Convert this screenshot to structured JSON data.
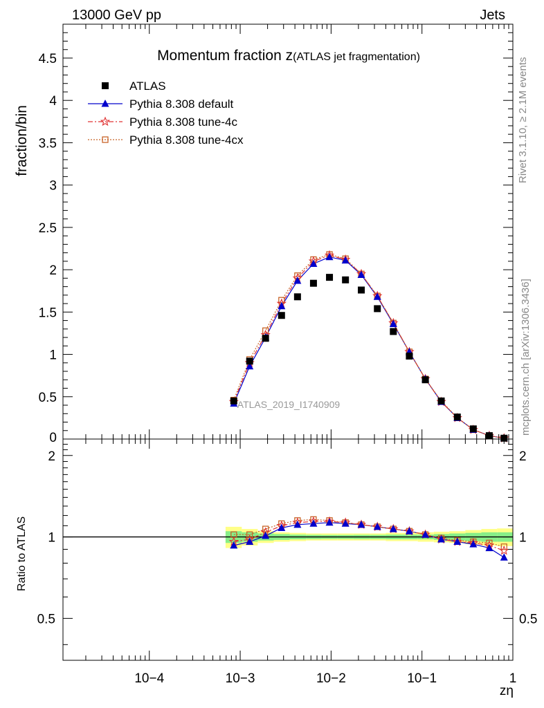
{
  "header": {
    "energy_label": "13000 GeV pp",
    "process_label": "Jets"
  },
  "side_labels": {
    "rivet": "Rivet 3.1.10, ≥ 2.1M events",
    "mcplots": "mcplots.cern.ch [arXiv:1306.3436]"
  },
  "chart_data": [
    {
      "type": "scatter",
      "title_main": "Momentum fraction z",
      "title_sub": "(ATLAS jet fragmentation)",
      "ylabel": "fraction/bin",
      "watermark": "ATLAS_2019_I1740909",
      "xscale": "log",
      "xlim": [
        0.0001,
        1
      ],
      "ylim": [
        0,
        4.9
      ],
      "yticks": [
        0.5,
        1,
        1.5,
        2,
        2.5,
        3,
        3.5,
        4,
        4.5
      ],
      "ytick_labels": [
        "0.5",
        "1",
        "1.5",
        "2",
        "2.5",
        "3",
        "3.5",
        "4",
        "4.5"
      ],
      "x": [
        0.00085,
        0.00127,
        0.0019,
        0.00285,
        0.00427,
        0.0064,
        0.0096,
        0.0144,
        0.0215,
        0.0323,
        0.0484,
        0.0726,
        0.109,
        0.163,
        0.245,
        0.367,
        0.55,
        0.8
      ],
      "series": [
        {
          "name": "ATLAS",
          "marker": "square",
          "color": "#000000",
          "values": [
            0.45,
            0.92,
            1.19,
            1.46,
            1.68,
            1.84,
            1.91,
            1.88,
            1.76,
            1.54,
            1.27,
            0.98,
            0.7,
            0.45,
            0.26,
            0.12,
            0.04,
            0.01
          ]
        },
        {
          "name": "Pythia 8.308 default",
          "marker": "triangle",
          "color": "#0000cc",
          "values": [
            0.42,
            0.86,
            1.2,
            1.57,
            1.87,
            2.07,
            2.15,
            2.11,
            1.94,
            1.68,
            1.36,
            1.03,
            0.71,
            0.44,
            0.25,
            0.11,
            0.04,
            0.01
          ]
        },
        {
          "name": "Pythia 8.308 tune-4c",
          "marker": "star",
          "color": "#e03030",
          "values": [
            0.44,
            0.9,
            1.23,
            1.6,
            1.9,
            2.1,
            2.17,
            2.12,
            1.95,
            1.69,
            1.37,
            1.03,
            0.71,
            0.44,
            0.25,
            0.11,
            0.04,
            0.01
          ]
        },
        {
          "name": "Pythia 8.308 tune-4cx",
          "marker": "open-square",
          "color": "#c86428",
          "values": [
            0.46,
            0.94,
            1.28,
            1.64,
            1.93,
            2.12,
            2.18,
            2.13,
            1.95,
            1.69,
            1.37,
            1.03,
            0.71,
            0.45,
            0.25,
            0.11,
            0.04,
            0.01
          ]
        }
      ]
    },
    {
      "type": "line",
      "ylabel": "Ratio to ATLAS",
      "xlabel": "zη",
      "xscale": "log",
      "xlim": [
        0.0001,
        1
      ],
      "ylim": [
        0.35,
        2.3
      ],
      "yticks": [
        0.5,
        1,
        2
      ],
      "ytick_labels": [
        "0.5",
        "1",
        "2"
      ],
      "xticks": [
        0.0001,
        0.001,
        0.01,
        0.1,
        1
      ],
      "xtick_labels": [
        "10−4",
        "10−3",
        "10−2",
        "10−1",
        "1"
      ],
      "band_edges": [
        0.00069,
        0.00104,
        0.00156,
        0.00234,
        0.0035,
        0.0053,
        0.0079,
        0.0118,
        0.0177,
        0.0266,
        0.04,
        0.06,
        0.09,
        0.135,
        0.2,
        0.3,
        0.45,
        0.67,
        1.0
      ],
      "band_inner": [
        0.05,
        0.04,
        0.03,
        0.025,
        0.02,
        0.018,
        0.017,
        0.017,
        0.018,
        0.018,
        0.02,
        0.02,
        0.02,
        0.025,
        0.03,
        0.035,
        0.04,
        0.04
      ],
      "band_outer": [
        0.09,
        0.07,
        0.05,
        0.04,
        0.035,
        0.03,
        0.03,
        0.03,
        0.03,
        0.03,
        0.035,
        0.035,
        0.04,
        0.045,
        0.05,
        0.06,
        0.07,
        0.075
      ],
      "x": [
        0.00085,
        0.00127,
        0.0019,
        0.00285,
        0.00427,
        0.0064,
        0.0096,
        0.0144,
        0.0215,
        0.0323,
        0.0484,
        0.0726,
        0.109,
        0.163,
        0.245,
        0.367,
        0.55,
        0.8
      ],
      "series": [
        {
          "name": "Pythia 8.308 default",
          "color": "#0000cc",
          "values": [
            0.93,
            0.96,
            1.01,
            1.08,
            1.11,
            1.12,
            1.13,
            1.12,
            1.11,
            1.09,
            1.07,
            1.05,
            1.02,
            0.98,
            0.96,
            0.94,
            0.91,
            0.84
          ]
        },
        {
          "name": "Pythia 8.308 tune-4c",
          "color": "#e03030",
          "values": [
            0.96,
            0.98,
            1.04,
            1.1,
            1.13,
            1.14,
            1.14,
            1.13,
            1.11,
            1.09,
            1.07,
            1.05,
            1.02,
            0.98,
            0.96,
            0.95,
            0.93,
            0.89
          ]
        },
        {
          "name": "Pythia 8.308 tune-4cx",
          "color": "#c86428",
          "values": [
            1.02,
            1.02,
            1.07,
            1.12,
            1.15,
            1.16,
            1.15,
            1.13,
            1.11,
            1.09,
            1.07,
            1.05,
            1.02,
            0.99,
            0.97,
            0.96,
            0.95,
            0.92
          ]
        }
      ]
    }
  ]
}
